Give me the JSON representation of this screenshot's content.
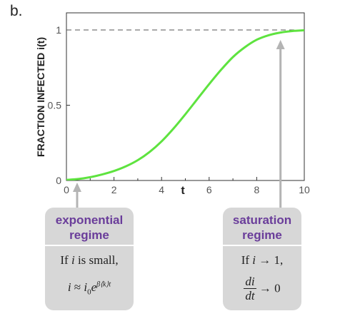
{
  "panel_label": "b.",
  "chart_data": {
    "type": "line",
    "title": "",
    "xlabel": "t",
    "ylabel": "FRACTION INFECTED i(t)",
    "xlim": [
      0,
      10
    ],
    "ylim": [
      0,
      1
    ],
    "x_ticks": [
      0,
      2,
      4,
      6,
      8,
      10
    ],
    "y_ticks": [
      0,
      0.5,
      1
    ],
    "y_tick_labels": [
      "0",
      "0.5",
      "1"
    ],
    "grid": false,
    "reference_line": {
      "y": 1,
      "style": "dashed"
    },
    "series": [
      {
        "color": "#5ee33f",
        "x": [
          0,
          0.5,
          1,
          1.5,
          2,
          2.5,
          3,
          3.5,
          4,
          4.5,
          5,
          5.5,
          6,
          6.5,
          7,
          7.5,
          8,
          8.5,
          9,
          9.5,
          10
        ],
        "y": [
          0.004,
          0.01,
          0.022,
          0.04,
          0.063,
          0.094,
          0.135,
          0.19,
          0.26,
          0.345,
          0.44,
          0.54,
          0.64,
          0.735,
          0.82,
          0.885,
          0.935,
          0.965,
          0.983,
          0.993,
          0.998
        ]
      }
    ],
    "annotation_arrows": [
      {
        "target_x": 0.45,
        "label": "exponential regime"
      },
      {
        "target_x": 9.0,
        "label": "saturation regime"
      }
    ]
  },
  "colors": {
    "curve": "#5ee33f",
    "box_bg": "#d7d7d7",
    "heading": "#6a3d9a",
    "arrow": "#b4b4b4"
  },
  "boxes": {
    "exponential": {
      "heading_line1": "exponential",
      "heading_line2": "regime",
      "cond_prefix": "If ",
      "cond_var": "i",
      "cond_suffix": " is small,",
      "formula_lhs": "i",
      "formula_approx": " ≈ ",
      "formula_i": "i",
      "formula_sub": "0",
      "formula_e": "e",
      "formula_exp": "β⟨k⟩t"
    },
    "saturation": {
      "heading_line1": "saturation",
      "heading_line2": "regime",
      "cond_prefix": "If ",
      "cond_var": "i",
      "cond_suffix": " → 1,",
      "frac_num": "di",
      "frac_den": "dt",
      "frac_tail": " → 0"
    }
  }
}
